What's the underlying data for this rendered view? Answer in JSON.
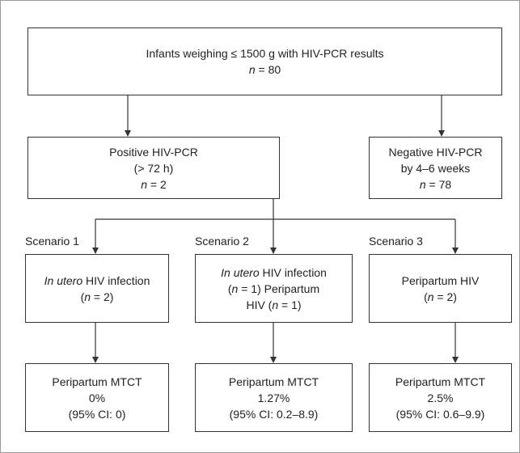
{
  "nodes": [
    {
      "lines": [
        [
          "Infants weighing ≤ 1500 g with HIV-PCR results"
        ],
        [
          {
            "italic": "n"
          },
          " = 80"
        ]
      ]
    },
    {
      "lines": [
        [
          "Positive HIV-PCR"
        ],
        [
          "(> 72 h)"
        ],
        [
          {
            "italic": "n"
          },
          " = 2"
        ]
      ]
    },
    {
      "lines": [
        [
          "Negative HIV-PCR"
        ],
        [
          "by 4–6 weeks"
        ],
        [
          {
            "italic": "n"
          },
          " = 78"
        ]
      ]
    },
    {
      "lines": [
        [
          {
            "italic": "In utero"
          },
          " HIV infection"
        ],
        [
          "(",
          {
            "italic": "n"
          },
          " = 2)"
        ]
      ]
    },
    {
      "lines": [
        [
          {
            "italic": "In utero"
          },
          " HIV infection"
        ],
        [
          "(",
          {
            "italic": "n"
          },
          " = 1) Peripartum"
        ],
        [
          "HIV (",
          {
            "italic": "n"
          },
          " = 1)"
        ]
      ]
    },
    {
      "lines": [
        [
          "Peripartum HIV"
        ],
        [
          "(",
          {
            "italic": "n"
          },
          " = 2)"
        ]
      ]
    },
    {
      "lines": [
        [
          "Peripartum MTCT"
        ],
        [
          "0%"
        ],
        [
          "(95% CI: 0)"
        ]
      ]
    },
    {
      "lines": [
        [
          "Peripartum MTCT"
        ],
        [
          "1.27%"
        ],
        [
          "(95% CI: 0.2–8.9)"
        ]
      ]
    },
    {
      "lines": [
        [
          "Peripartum MTCT"
        ],
        [
          "2.5%"
        ],
        [
          "(95% CI: 0.6–9.9)"
        ]
      ]
    }
  ],
  "scenarios": [
    "Scenario 1",
    "Scenario 2",
    "Scenario 3"
  ]
}
